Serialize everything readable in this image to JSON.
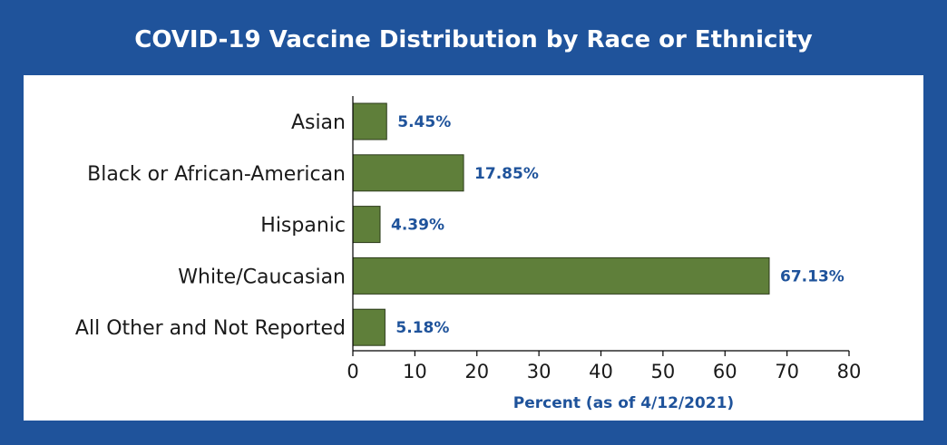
{
  "chart_data": {
    "type": "bar",
    "orientation": "horizontal",
    "title": "COVID-19 Vaccine Distribution by Race or Ethnicity",
    "xlabel": "Percent (as of 4/12/2021)",
    "ylabel": "",
    "categories": [
      "Asian",
      "Black or African-American",
      "Hispanic",
      "White/Caucasian",
      "All Other and Not Reported"
    ],
    "values": [
      5.45,
      17.85,
      4.39,
      67.13,
      5.18
    ],
    "value_labels": [
      "5.45%",
      "17.85%",
      "4.39%",
      "67.13%",
      "5.18%"
    ],
    "xlim": [
      0,
      80
    ],
    "xticks": [
      0,
      10,
      20,
      30,
      40,
      50,
      60,
      70,
      80
    ],
    "grid": false,
    "colors": {
      "background": "#1f539b",
      "panel": "#ffffff",
      "bar": "#5f7f3a",
      "value_text": "#1f539b"
    }
  }
}
